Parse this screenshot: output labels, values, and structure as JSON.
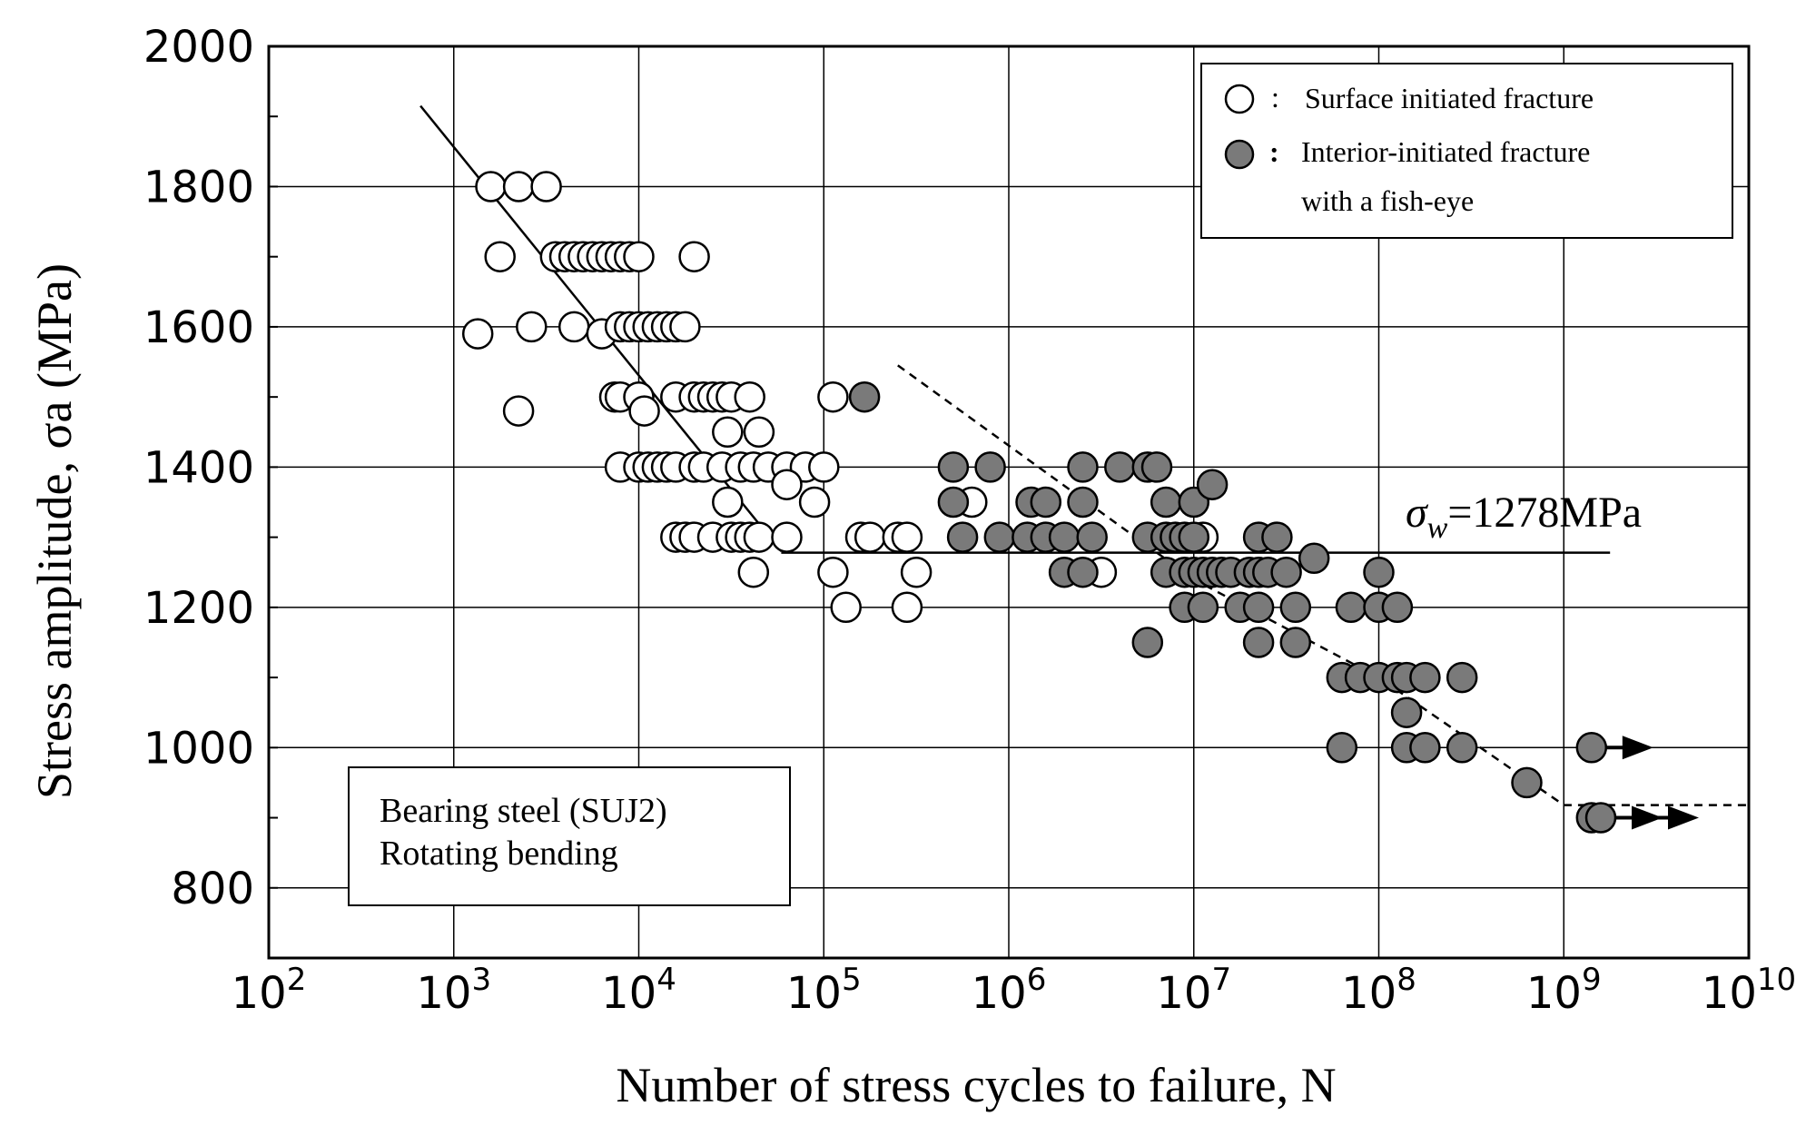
{
  "chart_data": {
    "type": "scatter",
    "title": "",
    "xlabel": "Number of stress cycles to failure, N",
    "ylabel": "Stress amplitude, σa (MPa)",
    "x_scale": "log10",
    "xlim_exp": [
      2,
      10
    ],
    "ylim": [
      700,
      2000
    ],
    "y_ticks": [
      800,
      1000,
      1200,
      1400,
      1600,
      1800,
      2000
    ],
    "x_tick_exponents": [
      2,
      3,
      4,
      5,
      6,
      7,
      8,
      9,
      10
    ],
    "x_tick_base": "10",
    "grid": true,
    "legend": {
      "position": "top-right",
      "surface_label": "Surface initiated fracture",
      "interior_label_line1": "Interior-initiated fracture",
      "interior_label_line2": "with a fish-eye"
    },
    "info_box": {
      "position": "bottom-left",
      "line1": "Bearing steel (SUJ2)",
      "line2": "Rotating bending"
    },
    "annotation": {
      "sigma_symbol": "σ",
      "sigma_sub": "w",
      "text": "=1278MPa"
    },
    "fatigue_limit_MPa": 1278,
    "series": [
      {
        "name": "Surface initiated fracture",
        "marker": "open-circle",
        "points_log10N_MPa": [
          [
            3.2,
            1800
          ],
          [
            3.35,
            1800
          ],
          [
            3.5,
            1800
          ],
          [
            3.25,
            1700
          ],
          [
            3.55,
            1700
          ],
          [
            3.6,
            1700
          ],
          [
            3.65,
            1700
          ],
          [
            3.7,
            1700
          ],
          [
            3.75,
            1700
          ],
          [
            3.8,
            1700
          ],
          [
            3.85,
            1700
          ],
          [
            3.9,
            1700
          ],
          [
            3.95,
            1700
          ],
          [
            4.0,
            1700
          ],
          [
            4.3,
            1700
          ],
          [
            3.13,
            1590
          ],
          [
            3.42,
            1600
          ],
          [
            3.65,
            1600
          ],
          [
            3.8,
            1590
          ],
          [
            3.9,
            1600
          ],
          [
            3.95,
            1600
          ],
          [
            4.0,
            1600
          ],
          [
            4.05,
            1600
          ],
          [
            4.1,
            1600
          ],
          [
            4.15,
            1600
          ],
          [
            4.2,
            1600
          ],
          [
            4.25,
            1600
          ],
          [
            3.35,
            1480
          ],
          [
            3.87,
            1500
          ],
          [
            3.9,
            1500
          ],
          [
            4.0,
            1500
          ],
          [
            4.03,
            1480
          ],
          [
            4.2,
            1500
          ],
          [
            4.3,
            1500
          ],
          [
            4.35,
            1500
          ],
          [
            4.4,
            1500
          ],
          [
            4.45,
            1500
          ],
          [
            4.5,
            1500
          ],
          [
            4.6,
            1500
          ],
          [
            5.05,
            1500
          ],
          [
            3.9,
            1400
          ],
          [
            4.0,
            1400
          ],
          [
            4.05,
            1400
          ],
          [
            4.1,
            1400
          ],
          [
            4.15,
            1400
          ],
          [
            4.2,
            1400
          ],
          [
            4.3,
            1400
          ],
          [
            4.35,
            1400
          ],
          [
            4.45,
            1400
          ],
          [
            4.55,
            1400
          ],
          [
            4.62,
            1400
          ],
          [
            4.7,
            1400
          ],
          [
            4.8,
            1400
          ],
          [
            4.9,
            1400
          ],
          [
            5.0,
            1400
          ],
          [
            4.48,
            1450
          ],
          [
            4.65,
            1450
          ],
          [
            4.48,
            1350
          ],
          [
            4.8,
            1375
          ],
          [
            4.95,
            1350
          ],
          [
            5.8,
            1350
          ],
          [
            4.2,
            1300
          ],
          [
            4.25,
            1300
          ],
          [
            4.3,
            1300
          ],
          [
            4.4,
            1300
          ],
          [
            4.5,
            1300
          ],
          [
            4.55,
            1300
          ],
          [
            4.6,
            1300
          ],
          [
            4.65,
            1300
          ],
          [
            4.8,
            1300
          ],
          [
            5.2,
            1300
          ],
          [
            5.25,
            1300
          ],
          [
            5.4,
            1300
          ],
          [
            5.45,
            1300
          ],
          [
            4.62,
            1250
          ],
          [
            5.05,
            1250
          ],
          [
            5.5,
            1250
          ],
          [
            6.5,
            1250
          ],
          [
            5.12,
            1200
          ],
          [
            5.45,
            1200
          ],
          [
            7.05,
            1300
          ]
        ]
      },
      {
        "name": "Interior-initiated fracture with a fish-eye",
        "marker": "filled-circle",
        "points_log10N_MPa": [
          [
            5.22,
            1500
          ],
          [
            5.7,
            1400
          ],
          [
            5.9,
            1400
          ],
          [
            6.4,
            1400
          ],
          [
            6.6,
            1400
          ],
          [
            6.75,
            1400
          ],
          [
            6.8,
            1400
          ],
          [
            5.7,
            1350
          ],
          [
            6.12,
            1350
          ],
          [
            6.2,
            1350
          ],
          [
            6.4,
            1350
          ],
          [
            6.85,
            1350
          ],
          [
            7.0,
            1350
          ],
          [
            7.1,
            1375
          ],
          [
            5.75,
            1300
          ],
          [
            5.95,
            1300
          ],
          [
            6.1,
            1300
          ],
          [
            6.2,
            1300
          ],
          [
            6.3,
            1300
          ],
          [
            6.45,
            1300
          ],
          [
            6.75,
            1300
          ],
          [
            6.85,
            1300
          ],
          [
            6.9,
            1300
          ],
          [
            6.95,
            1300
          ],
          [
            7.0,
            1300
          ],
          [
            7.35,
            1300
          ],
          [
            7.45,
            1300
          ],
          [
            6.3,
            1250
          ],
          [
            6.4,
            1250
          ],
          [
            6.85,
            1250
          ],
          [
            6.95,
            1250
          ],
          [
            7.0,
            1250
          ],
          [
            7.05,
            1250
          ],
          [
            7.1,
            1250
          ],
          [
            7.15,
            1250
          ],
          [
            7.2,
            1250
          ],
          [
            7.3,
            1250
          ],
          [
            7.35,
            1250
          ],
          [
            7.4,
            1250
          ],
          [
            7.5,
            1250
          ],
          [
            7.65,
            1270
          ],
          [
            8.0,
            1250
          ],
          [
            6.95,
            1200
          ],
          [
            7.05,
            1200
          ],
          [
            7.25,
            1200
          ],
          [
            7.35,
            1200
          ],
          [
            7.55,
            1200
          ],
          [
            7.85,
            1200
          ],
          [
            8.0,
            1200
          ],
          [
            8.1,
            1200
          ],
          [
            6.75,
            1150
          ],
          [
            7.35,
            1150
          ],
          [
            7.55,
            1150
          ],
          [
            7.8,
            1100
          ],
          [
            7.9,
            1100
          ],
          [
            8.0,
            1100
          ],
          [
            8.1,
            1100
          ],
          [
            8.15,
            1100
          ],
          [
            8.25,
            1100
          ],
          [
            8.45,
            1100
          ],
          [
            8.15,
            1050
          ],
          [
            7.8,
            1000
          ],
          [
            8.15,
            1000
          ],
          [
            8.25,
            1000
          ],
          [
            8.45,
            1000
          ],
          [
            8.8,
            950
          ],
          [
            9.15,
            1000
          ],
          [
            9.15,
            900
          ],
          [
            9.2,
            900
          ]
        ]
      }
    ],
    "trend_lines": [
      {
        "name": "finite-life S-N line (surface)",
        "style": "solid",
        "points_log10N_MPa": [
          [
            2.82,
            1915
          ],
          [
            4.77,
            1280
          ]
        ]
      },
      {
        "name": "fatigue limit",
        "style": "solid",
        "points_log10N_MPa": [
          [
            4.77,
            1278
          ],
          [
            9.25,
            1278
          ]
        ]
      },
      {
        "name": "S-N line (interior)",
        "style": "dashed",
        "points_log10N_MPa": [
          [
            5.4,
            1545
          ],
          [
            7.0,
            1240
          ],
          [
            8.0,
            1100
          ],
          [
            9.0,
            918
          ],
          [
            10.0,
            918
          ]
        ]
      }
    ],
    "runouts": [
      {
        "log10N": 9.15,
        "MPa": 1000,
        "arrows": 1
      },
      {
        "log10N": 9.2,
        "MPa": 900,
        "arrows": 2
      }
    ]
  }
}
